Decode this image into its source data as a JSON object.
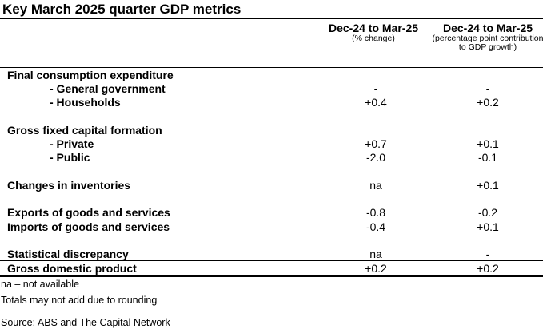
{
  "title": "Key March 2025 quarter GDP metrics",
  "columns": [
    {
      "header": "Dec-24 to Mar-25",
      "sub": "(% change)"
    },
    {
      "header": "Dec-24 to Mar-25",
      "sub": "(percentage point contribution to GDP growth)"
    }
  ],
  "rows": [
    {
      "label": "Final consumption expenditure",
      "v1": "",
      "v2": ""
    },
    {
      "label": "- General government",
      "v1": "-",
      "v2": "-"
    },
    {
      "label": "- Households",
      "v1": "+0.4",
      "v2": "+0.2"
    },
    {
      "label": "Gross fixed capital formation",
      "v1": "",
      "v2": ""
    },
    {
      "label": "- Private",
      "v1": "+0.7",
      "v2": "+0.1"
    },
    {
      "label": "- Public",
      "v1": "-2.0",
      "v2": "-0.1"
    },
    {
      "label": "Changes in inventories",
      "v1": "na",
      "v2": "+0.1"
    },
    {
      "label": "Exports of goods and services",
      "v1": "-0.8",
      "v2": "-0.2"
    },
    {
      "label": "Imports of goods and services",
      "v1": "-0.4",
      "v2": "+0.1"
    },
    {
      "label": "Statistical discrepancy",
      "v1": "na",
      "v2": "-"
    },
    {
      "label": "Gross domestic product",
      "v1": "+0.2",
      "v2": "+0.2"
    }
  ],
  "notes": [
    "na – not available",
    "Totals may not add due to rounding",
    "Source: ABS and The Capital Network"
  ]
}
